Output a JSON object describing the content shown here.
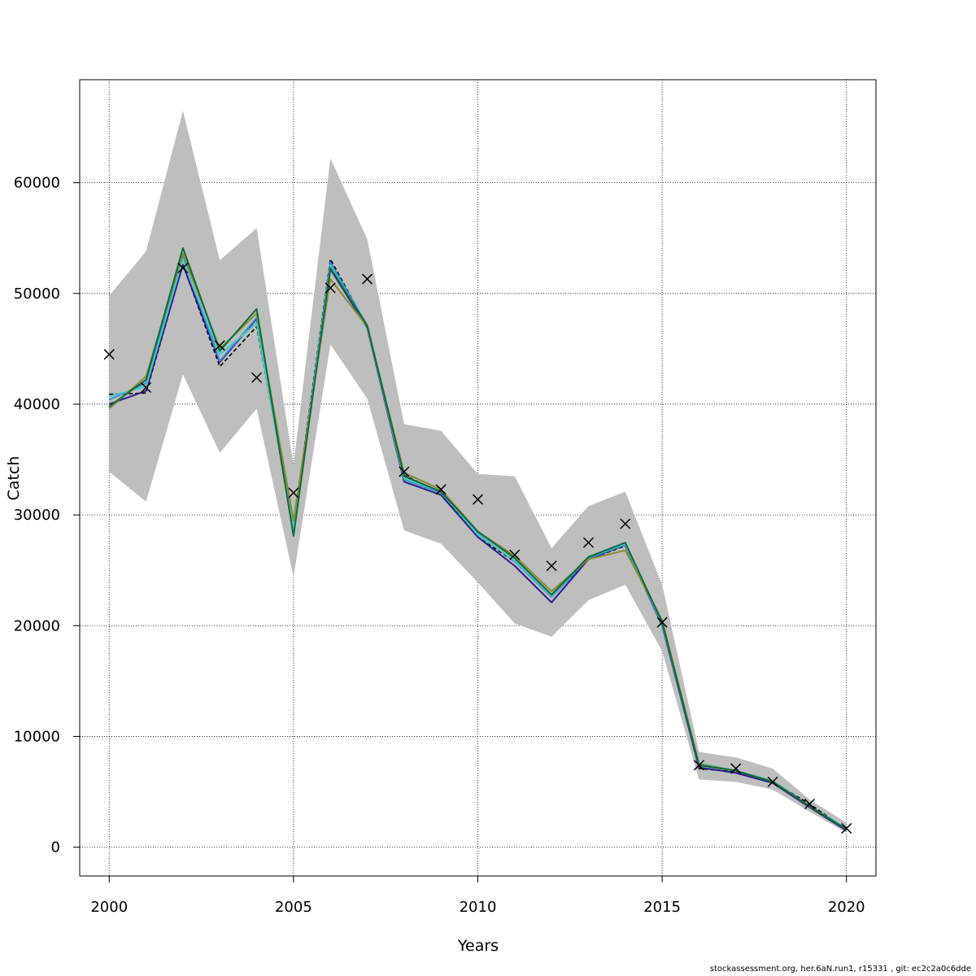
{
  "chart_data": {
    "type": "line",
    "xlabel": "Years",
    "ylabel": "Catch",
    "xlim": [
      1999.2,
      2020.8
    ],
    "ylim": [
      -2600,
      69300
    ],
    "xticks": [
      2000,
      2005,
      2010,
      2015,
      2020
    ],
    "yticks": [
      0,
      10000,
      20000,
      30000,
      40000,
      50000,
      60000
    ],
    "grid": true,
    "x": [
      2000,
      2001,
      2002,
      2003,
      2004,
      2005,
      2006,
      2007,
      2008,
      2009,
      2010,
      2011,
      2012,
      2013,
      2014,
      2015,
      2016,
      2017,
      2018,
      2019,
      2020
    ],
    "confidence_band": {
      "color": "#bebebe",
      "lower": [
        33900,
        31200,
        42700,
        35600,
        39600,
        24400,
        45400,
        40500,
        28600,
        27400,
        23900,
        20200,
        19000,
        22300,
        23700,
        17700,
        6100,
        5900,
        5200,
        3200,
        1300
      ],
      "upper": [
        49800,
        53800,
        66500,
        53000,
        55900,
        34500,
        62200,
        54900,
        38200,
        37600,
        33700,
        33500,
        27000,
        30800,
        32100,
        23700,
        8600,
        8100,
        7100,
        4300,
        2200
      ]
    },
    "observed": {
      "marker": "x",
      "values": [
        44500,
        41500,
        52300,
        45300,
        42400,
        32000,
        50500,
        51300,
        33900,
        32300,
        31400,
        26400,
        25400,
        27500,
        29200,
        20300,
        7400,
        7100,
        5900,
        3900,
        1700
      ]
    },
    "series": [
      {
        "color": "#000000",
        "dashed": true,
        "values": [
          40900,
          41000,
          52600,
          43400,
          47000,
          29000,
          53100,
          47000,
          33600,
          32000,
          28000,
          25800,
          22600,
          26000,
          27200,
          20200,
          7100,
          6800,
          5900,
          3900,
          1600
        ]
      },
      {
        "color": "#2b1e8c",
        "dashed": false,
        "values": [
          40000,
          41200,
          52600,
          43800,
          47700,
          28500,
          52200,
          46900,
          33000,
          31800,
          28000,
          25400,
          22100,
          26000,
          27300,
          20000,
          7200,
          6700,
          5800,
          3600,
          1500
        ]
      },
      {
        "color": "#2f8fd8",
        "dashed": false,
        "values": [
          40400,
          41900,
          53300,
          43900,
          47800,
          28600,
          52800,
          47100,
          33200,
          32000,
          28300,
          25800,
          22600,
          26100,
          27300,
          20100,
          7400,
          6900,
          5900,
          3700,
          1600
        ]
      },
      {
        "color": "#4cc9c4",
        "dashed": false,
        "values": [
          40700,
          41600,
          53100,
          44500,
          47300,
          28700,
          52500,
          47000,
          33300,
          32100,
          28200,
          25900,
          22700,
          26200,
          27400,
          20200,
          7600,
          6900,
          6000,
          3700,
          1700
        ]
      },
      {
        "color": "#8a8a2e",
        "dashed": false,
        "values": [
          39600,
          42500,
          53600,
          45000,
          48200,
          29500,
          51300,
          47000,
          33800,
          32300,
          28500,
          26300,
          23100,
          26000,
          26800,
          20500,
          7500,
          6900,
          5900,
          3700,
          1600
        ]
      },
      {
        "color": "#0b6b3a",
        "dashed": false,
        "values": [
          39800,
          42200,
          54100,
          44800,
          48600,
          28100,
          52300,
          47100,
          33500,
          32100,
          28500,
          26100,
          22800,
          26200,
          27500,
          20300,
          7400,
          6900,
          5900,
          3700,
          1600
        ]
      }
    ]
  },
  "footer": "stockassessment.org, her.6aN.run1, r15331 , git: ec2c2a0c6dde"
}
